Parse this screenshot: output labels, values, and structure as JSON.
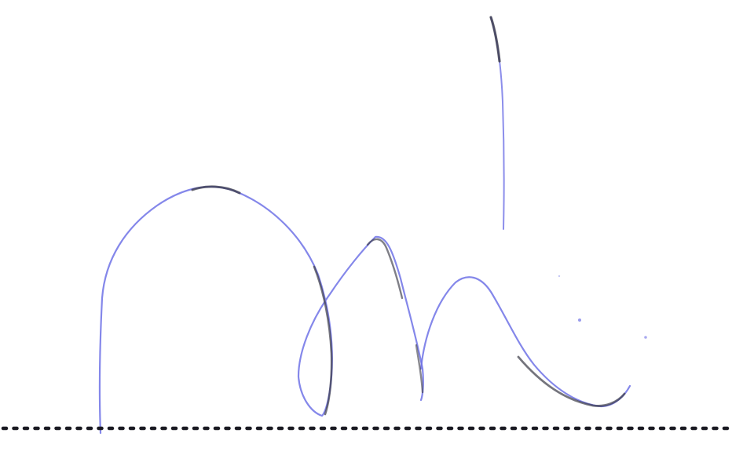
{
  "signature": {
    "ink_color": "#6f72e6",
    "ink_dark_color": "#3a3a46",
    "background_color": "#ffffff",
    "line_color": "#1a1a22",
    "line_style": "dotted"
  }
}
